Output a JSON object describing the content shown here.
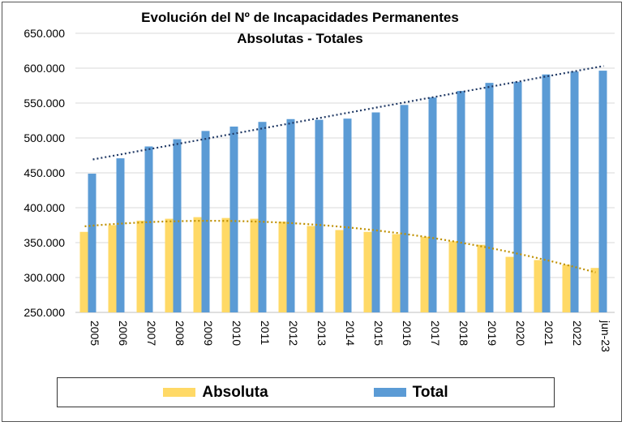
{
  "chart_data": {
    "type": "bar",
    "title": "Evolución del Nº de Incapacidades Permanentes",
    "subtitle": "Absolutas  -  Totales",
    "xlabel": "",
    "ylabel": "",
    "ylim": [
      250000,
      650000
    ],
    "yticks": [
      "250.000",
      "300.000",
      "350.000",
      "400.000",
      "450.000",
      "500.000",
      "550.000",
      "600.000",
      "650.000"
    ],
    "grid": true,
    "legend_position": "bottom",
    "categories": [
      "2005",
      "2006",
      "2007",
      "2008",
      "2009",
      "2010",
      "2011",
      "2012",
      "2013",
      "2014",
      "2015",
      "2016",
      "2017",
      "2018",
      "2019",
      "2020",
      "2021",
      "2022",
      "jun-23"
    ],
    "series": [
      {
        "name": "Absoluta",
        "color": "#FFD966",
        "trendline": "polynomial-2",
        "trend_color": "#BF9000",
        "values": [
          365400,
          375000,
          381500,
          384200,
          386500,
          385300,
          384200,
          380000,
          373800,
          368000,
          365400,
          362200,
          358400,
          351900,
          346900,
          329600,
          325000,
          318400,
          313700
        ]
      },
      {
        "name": "Total",
        "color": "#5B9BD5",
        "trendline": "linear",
        "trend_color": "#1F3864",
        "values": [
          448800,
          470800,
          487800,
          498200,
          510000,
          516300,
          523000,
          527000,
          526000,
          527700,
          536600,
          547300,
          558000,
          567300,
          578900,
          580500,
          591000,
          595200,
          596400
        ]
      }
    ]
  }
}
